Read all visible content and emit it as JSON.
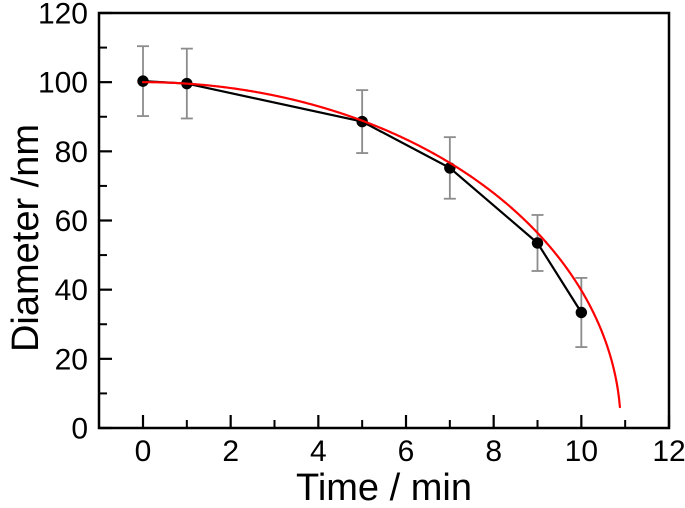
{
  "figure": {
    "background": "#ffffff"
  },
  "chart_data": {
    "type": "scatter",
    "title": "",
    "xlabel": "Time / min",
    "ylabel": "Diameter /nm",
    "xlim": [
      -1,
      12
    ],
    "ylim": [
      0,
      120
    ],
    "x_ticks": [
      0,
      2,
      4,
      6,
      8,
      10,
      12
    ],
    "y_ticks": [
      0,
      20,
      40,
      60,
      80,
      100,
      120
    ],
    "x_minor_step": 1,
    "y_minor_step": 10,
    "grid": false,
    "legend": "none",
    "frame": "full-box",
    "colors": {
      "data": "#000000",
      "error_bars": "#8c8c8c",
      "fit": "#ff0000",
      "axis": "#000000"
    },
    "series": [
      {
        "name": "measured-diameter",
        "kind": "scatter-line",
        "marker": "filled-circle",
        "color": "#000000",
        "x": [
          0,
          1,
          5,
          7,
          9,
          10
        ],
        "y": [
          100.3,
          99.6,
          88.6,
          75.2,
          53.5,
          33.4
        ],
        "y_err": [
          10.1,
          10.1,
          9.1,
          8.9,
          8.1,
          10.0
        ]
      },
      {
        "name": "fit-curve",
        "kind": "curve",
        "color": "#ff0000",
        "formula": "d = d0 * sqrt(1 - (t/tc)^2)",
        "d0": 100.0,
        "tc": 10.9,
        "t_range": [
          0,
          10.88
        ]
      }
    ]
  }
}
